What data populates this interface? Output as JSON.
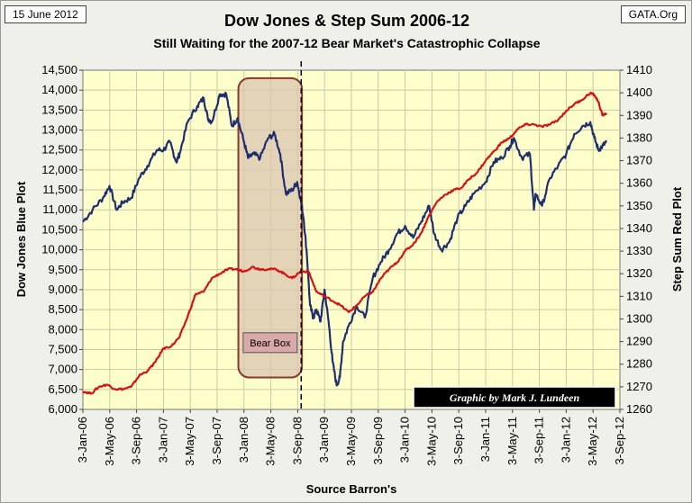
{
  "header": {
    "date": "15 June 2012",
    "source": "GATA.Org"
  },
  "chart_data": {
    "type": "line",
    "title": "Dow Jones & Step Sum 2006-12",
    "subtitle": "Still Waiting for the 2007-12 Bear Market's Catastrophic Collapse",
    "xlabel": "Source Barron's",
    "ylabel_left": "Dow Jones Blue Plot",
    "ylabel_right": "Step Sum Red Plot",
    "ylim_left": [
      6000,
      14500
    ],
    "ylim_right": [
      1260,
      1410
    ],
    "x_range": [
      2006.0,
      2012.667
    ],
    "x_ticks": [
      "3-Jan-06",
      "3-May-06",
      "3-Sep-06",
      "3-Jan-07",
      "3-May-07",
      "3-Sep-07",
      "3-Jan-08",
      "3-May-08",
      "3-Sep-08",
      "3-Jan-09",
      "3-May-09",
      "3-Sep-09",
      "3-Jan-10",
      "3-May-10",
      "3-Sep-10",
      "3-Jan-11",
      "3-May-11",
      "3-Sep-11",
      "3-Jan-12",
      "3-May-12",
      "3-Sep-12"
    ],
    "y_ticks_left": [
      "6,000",
      "6,500",
      "7,000",
      "7,500",
      "8,000",
      "8,500",
      "9,000",
      "9,500",
      "10,000",
      "10,500",
      "11,000",
      "11,500",
      "12,000",
      "12,500",
      "13,000",
      "13,500",
      "14,000",
      "14,500"
    ],
    "y_ticks_right": [
      "1260",
      "1270",
      "1280",
      "1290",
      "1300",
      "1310",
      "1320",
      "1330",
      "1340",
      "1350",
      "1360",
      "1370",
      "1380",
      "1390",
      "1400",
      "1410"
    ],
    "series": [
      {
        "name": "Dow Jones",
        "axis": "left",
        "color": "#1f2f6e",
        "x": [
          2006.0,
          2006.12,
          2006.25,
          2006.33,
          2006.42,
          2006.5,
          2006.6,
          2006.7,
          2006.8,
          2006.92,
          2007.0,
          2007.08,
          2007.16,
          2007.2,
          2007.3,
          2007.42,
          2007.5,
          2007.55,
          2007.6,
          2007.7,
          2007.78,
          2007.85,
          2007.92,
          2008.0,
          2008.05,
          2008.12,
          2008.2,
          2008.3,
          2008.38,
          2008.45,
          2008.52,
          2008.6,
          2008.66,
          2008.7,
          2008.74,
          2008.78,
          2008.82,
          2008.86,
          2008.9,
          2008.95,
          2009.0,
          2009.05,
          2009.1,
          2009.15,
          2009.19,
          2009.23,
          2009.3,
          2009.4,
          2009.5,
          2009.6,
          2009.7,
          2009.8,
          2009.9,
          2010.0,
          2010.1,
          2010.2,
          2010.3,
          2010.36,
          2010.45,
          2010.55,
          2010.65,
          2010.75,
          2010.85,
          2011.0,
          2011.1,
          2011.2,
          2011.3,
          2011.35,
          2011.45,
          2011.55,
          2011.6,
          2011.62,
          2011.7,
          2011.8,
          2011.9,
          2012.0,
          2012.1,
          2012.2,
          2012.3,
          2012.35,
          2012.4,
          2012.45,
          2012.5
        ],
        "values": [
          10700,
          11000,
          11300,
          11600,
          11000,
          11200,
          11300,
          11800,
          12100,
          12500,
          12500,
          12700,
          12200,
          12400,
          13200,
          13600,
          13800,
          13300,
          13200,
          13900,
          13900,
          13100,
          13300,
          12700,
          12300,
          12400,
          12300,
          12800,
          12900,
          12400,
          11400,
          11500,
          11700,
          11300,
          10800,
          9900,
          8600,
          8300,
          8500,
          8200,
          9000,
          8200,
          7200,
          6600,
          6800,
          7700,
          8100,
          8600,
          8300,
          9300,
          9700,
          10000,
          10400,
          10600,
          10300,
          10700,
          11100,
          10400,
          10000,
          10200,
          10800,
          11100,
          11400,
          11700,
          12200,
          12300,
          12600,
          12800,
          12300,
          12400,
          11000,
          11400,
          11100,
          11800,
          12100,
          12400,
          12900,
          13100,
          13200,
          12800,
          12500,
          12600,
          12700
        ]
      },
      {
        "name": "Step Sum",
        "axis": "right",
        "color": "#d41414",
        "x": [
          2006.0,
          2006.1,
          2006.2,
          2006.3,
          2006.4,
          2006.5,
          2006.6,
          2006.7,
          2006.8,
          2006.9,
          2007.0,
          2007.1,
          2007.2,
          2007.3,
          2007.4,
          2007.5,
          2007.6,
          2007.7,
          2007.8,
          2007.9,
          2008.0,
          2008.1,
          2008.2,
          2008.3,
          2008.4,
          2008.5,
          2008.6,
          2008.7,
          2008.8,
          2008.9,
          2009.0,
          2009.1,
          2009.2,
          2009.3,
          2009.4,
          2009.5,
          2009.6,
          2009.7,
          2009.8,
          2009.9,
          2010.0,
          2010.1,
          2010.2,
          2010.3,
          2010.4,
          2010.5,
          2010.6,
          2010.7,
          2010.8,
          2010.9,
          2011.0,
          2011.1,
          2011.2,
          2011.3,
          2011.4,
          2011.5,
          2011.6,
          2011.7,
          2011.8,
          2011.9,
          2012.0,
          2012.1,
          2012.2,
          2012.3,
          2012.35,
          2012.4,
          2012.45,
          2012.5
        ],
        "values": [
          1268,
          1267,
          1270,
          1271,
          1269,
          1269,
          1270,
          1275,
          1277,
          1281,
          1287,
          1288,
          1292,
          1301,
          1311,
          1312,
          1318,
          1320,
          1322,
          1322,
          1321,
          1323,
          1322,
          1322,
          1322,
          1320,
          1318,
          1321,
          1321,
          1312,
          1310,
          1308,
          1306,
          1303,
          1306,
          1310,
          1312,
          1318,
          1322,
          1325,
          1330,
          1333,
          1338,
          1346,
          1352,
          1355,
          1357,
          1358,
          1362,
          1365,
          1370,
          1374,
          1378,
          1380,
          1384,
          1386,
          1386,
          1385,
          1386,
          1388,
          1392,
          1395,
          1397,
          1400,
          1399,
          1396,
          1390,
          1391
        ]
      }
    ],
    "vertical_marker": {
      "x": 2008.71,
      "style": "dashed"
    },
    "bear_box": {
      "label": "Bear Box",
      "x_start": 2007.93,
      "x_end": 2008.72,
      "y_top": 14300,
      "y_bottom": 6800
    },
    "credit_label": "Graphic by Mark J. Lundeen"
  }
}
